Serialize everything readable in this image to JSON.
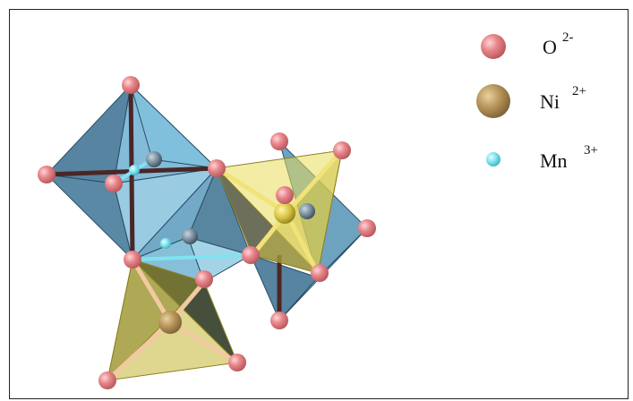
{
  "legend": [
    {
      "symbol": "O",
      "charge": "2-",
      "color": "#e8868b",
      "size": "large"
    },
    {
      "symbol": "Ni",
      "charge": "2+",
      "color": "#b8945a",
      "size": "largest"
    },
    {
      "symbol": "Mn",
      "charge": "3+",
      "color": "#7fe4f0",
      "size": "small"
    }
  ],
  "colors": {
    "oxygen": "#e8868b",
    "nickel": "#b8945a",
    "manganese": "#7fe4f0",
    "octahedron_blue": "#5a9ec2",
    "tetrahedron_yellow": "#d6c94a",
    "bond_dark": "#5a2a2a"
  }
}
